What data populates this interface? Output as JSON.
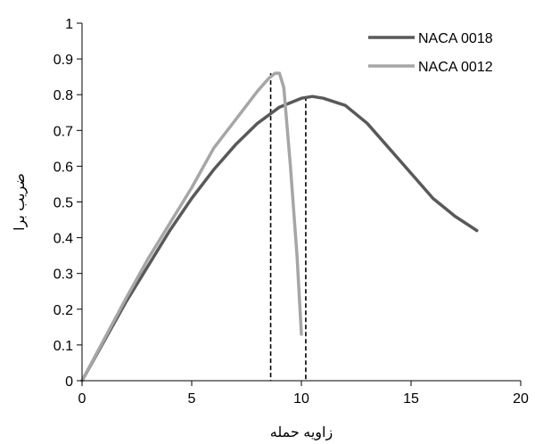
{
  "chart_data": {
    "type": "line",
    "title": "",
    "xlabel": "زاویه حمله",
    "ylabel": "ضریب برا",
    "xlim": [
      0,
      20
    ],
    "ylim": [
      0,
      1
    ],
    "xticks": [
      0,
      5,
      10,
      15,
      20
    ],
    "yticks": [
      0,
      0.1,
      0.2,
      0.3,
      0.4,
      0.5,
      0.6,
      0.7,
      0.8,
      0.9,
      1
    ],
    "x_tick_labels": [
      "0",
      "5",
      "10",
      "15",
      "20"
    ],
    "y_tick_labels": [
      "0",
      "0.1",
      "0.2",
      "0.3",
      "0.4",
      "0.5",
      "0.6",
      "0.7",
      "0.8",
      "0.9",
      "1"
    ],
    "grid": false,
    "legend_position": "top-right",
    "series": [
      {
        "name": "NACA 0018",
        "color": "#595959",
        "points": [
          [
            0,
            0
          ],
          [
            1,
            0.11
          ],
          [
            2,
            0.22
          ],
          [
            3,
            0.32
          ],
          [
            4,
            0.42
          ],
          [
            5,
            0.51
          ],
          [
            6,
            0.59
          ],
          [
            7,
            0.66
          ],
          [
            8,
            0.72
          ],
          [
            9,
            0.765
          ],
          [
            10,
            0.79
          ],
          [
            10.5,
            0.795
          ],
          [
            11,
            0.79
          ],
          [
            12,
            0.77
          ],
          [
            13,
            0.72
          ],
          [
            14,
            0.65
          ],
          [
            15,
            0.58
          ],
          [
            16,
            0.51
          ],
          [
            17,
            0.46
          ],
          [
            18,
            0.42
          ]
        ]
      },
      {
        "name": "NACA 0012",
        "color": "#a6a6a6",
        "points": [
          [
            0,
            0
          ],
          [
            1,
            0.115
          ],
          [
            2,
            0.23
          ],
          [
            3,
            0.34
          ],
          [
            4,
            0.44
          ],
          [
            5,
            0.54
          ],
          [
            6,
            0.65
          ],
          [
            7,
            0.73
          ],
          [
            8,
            0.81
          ],
          [
            8.5,
            0.845
          ],
          [
            8.8,
            0.86
          ],
          [
            9,
            0.86
          ],
          [
            9.2,
            0.82
          ],
          [
            9.5,
            0.6
          ],
          [
            9.8,
            0.35
          ],
          [
            10,
            0.13
          ]
        ]
      }
    ],
    "reference_lines": [
      {
        "x": 8.6,
        "y_top": 0.86,
        "style": "dashed",
        "color": "#000000"
      },
      {
        "x": 10.2,
        "y_top": 0.795,
        "style": "dashed",
        "color": "#000000"
      }
    ]
  }
}
